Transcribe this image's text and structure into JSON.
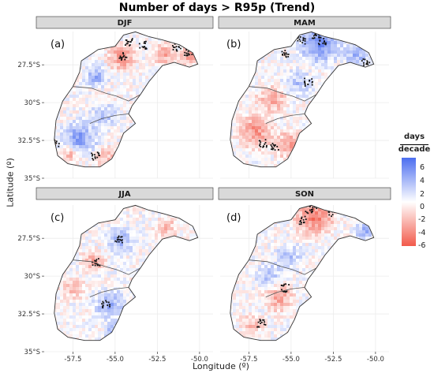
{
  "title": "Number of days > R95p (Trend)",
  "xlabel": "Longitude (º)",
  "ylabel": "Latitude (º)",
  "legend": {
    "title_top": "days",
    "title_bottom": "decade",
    "ticks": [
      "6",
      "4",
      "2",
      "0",
      "-2",
      "-4",
      "-6"
    ],
    "range": [
      -7,
      7
    ],
    "colors": {
      "high": "#4c6ef0",
      "mid": "#ffffff",
      "low": "#f25a4b"
    }
  },
  "axes": {
    "x_ticks": [
      "-57.5",
      "-55.0",
      "-52.5",
      "-50.0"
    ],
    "y_ticks": [
      "27.5°S",
      "30°S",
      "32.5°S",
      "35°S"
    ]
  },
  "panels": [
    {
      "season": "DJF",
      "tag": "(a)"
    },
    {
      "season": "MAM",
      "tag": "(b)"
    },
    {
      "season": "JJA",
      "tag": "(c)"
    },
    {
      "season": "SON",
      "tag": "(d)"
    }
  ]
}
